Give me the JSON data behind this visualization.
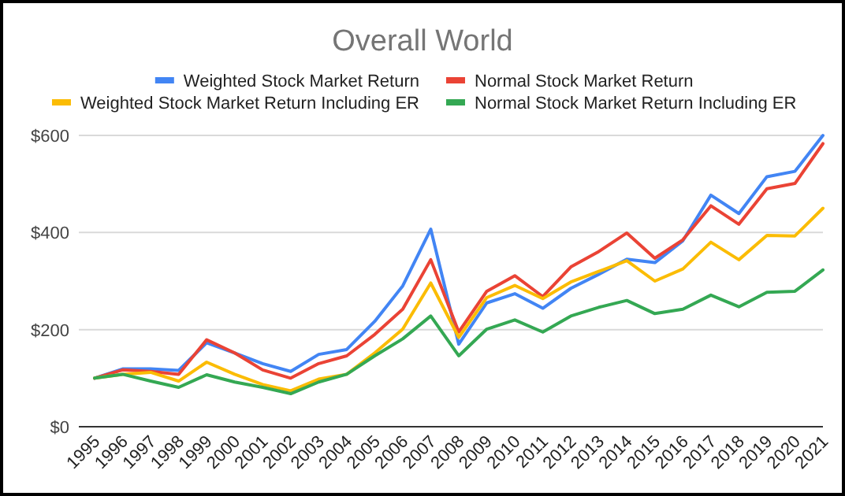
{
  "chart_data": {
    "type": "line",
    "title": "Overall World",
    "categories": [
      "1995",
      "1996",
      "1997",
      "1998",
      "1999",
      "2000",
      "2001",
      "2002",
      "2003",
      "2004",
      "2005",
      "2006",
      "2007",
      "2008",
      "2009",
      "2010",
      "2011",
      "2012",
      "2013",
      "2014",
      "2015",
      "2016",
      "2017",
      "2018",
      "2019",
      "2020",
      "2021"
    ],
    "series": [
      {
        "name": "Weighted Stock Market Return",
        "color": "#4285f4",
        "values": [
          100,
          119,
          119,
          116,
          173,
          152,
          130,
          114,
          149,
          159,
          217,
          290,
          407,
          170,
          255,
          274,
          244,
          285,
          314,
          345,
          338,
          383,
          477,
          439,
          515,
          526,
          600
        ]
      },
      {
        "name": "Normal Stock Market Return",
        "color": "#ea4335",
        "values": [
          100,
          117,
          114,
          108,
          179,
          152,
          117,
          100,
          130,
          146,
          190,
          242,
          344,
          195,
          279,
          311,
          268,
          329,
          361,
          399,
          347,
          385,
          455,
          417,
          490,
          501,
          583
        ]
      },
      {
        "name": "Weighted Stock Market Return Including ER",
        "color": "#fbbc04",
        "values": [
          100,
          108,
          112,
          94,
          133,
          108,
          87,
          74,
          98,
          108,
          152,
          201,
          296,
          184,
          266,
          291,
          264,
          298,
          320,
          342,
          300,
          325,
          380,
          344,
          394,
          393,
          450
        ]
      },
      {
        "name": "Normal Stock Market Return Including ER",
        "color": "#34a853",
        "values": [
          100,
          108,
          94,
          81,
          107,
          92,
          81,
          68,
          92,
          108,
          146,
          181,
          228,
          146,
          201,
          220,
          195,
          228,
          246,
          260,
          233,
          242,
          271,
          247,
          277,
          279,
          323
        ]
      }
    ],
    "ylim": [
      0,
      600
    ],
    "yticks": [
      {
        "value": 0,
        "label": "$0"
      },
      {
        "value": 200,
        "label": "$200"
      },
      {
        "value": 400,
        "label": "$400"
      },
      {
        "value": 600,
        "label": "$600"
      }
    ],
    "grid": "y",
    "legend": "top",
    "marker": "none",
    "line_style": "solid"
  }
}
